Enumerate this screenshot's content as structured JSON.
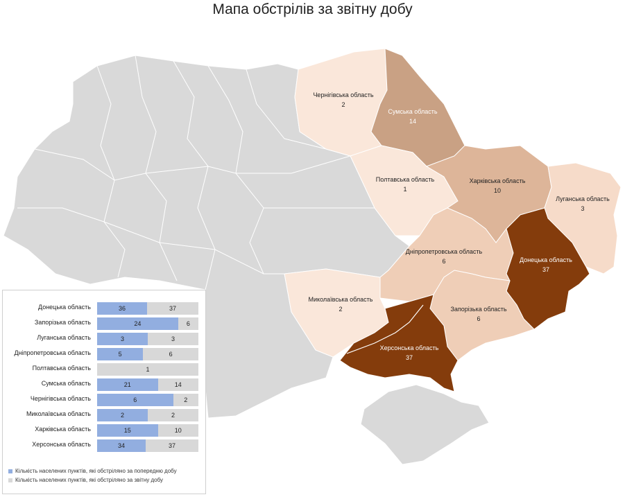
{
  "title": "Мапа обстрілів за звітну добу",
  "colors": {
    "other": "#d9d9d9",
    "c1": "#fae7da",
    "c2": "#f6dbc9",
    "c3": "#efceb7",
    "c4": "#ddb599",
    "c5": "#c9a184",
    "c6": "#843c0c",
    "prev": "#92aee0",
    "cur": "#d8d8d8"
  },
  "regions": [
    {
      "name": "Чернігівська область",
      "value": "2"
    },
    {
      "name": "Сумська область",
      "value": "14"
    },
    {
      "name": "Полтавська область",
      "value": "1"
    },
    {
      "name": "Харківська область",
      "value": "10"
    },
    {
      "name": "Луганська область",
      "value": "3"
    },
    {
      "name": "Дніпропетровська область",
      "value": "6"
    },
    {
      "name": "Донецька область",
      "value": "37"
    },
    {
      "name": "Миколаївська область",
      "value": "2"
    },
    {
      "name": "Запорізька область",
      "value": "6"
    },
    {
      "name": "Херсонська область",
      "value": "37"
    }
  ],
  "chart_data": {
    "type": "bar",
    "stacked": true,
    "orientation": "horizontal",
    "categories": [
      "Донецька область",
      "Запорізька область",
      "Луганська область",
      "Дніпропетровська область",
      "Полтавська область",
      "Сумська область",
      "Чернігівська  область",
      "Миколаївська область",
      "Харківська область",
      "Херсонська область"
    ],
    "series": [
      {
        "name": "Кількість населених пунктів, які обстріляно за попередню добу",
        "values": [
          36,
          24,
          3,
          5,
          null,
          21,
          6,
          2,
          15,
          34
        ]
      },
      {
        "name": "Кількість населених пунктів, які обстріляно за звітну добу",
        "values": [
          37,
          6,
          3,
          6,
          1,
          14,
          2,
          2,
          10,
          37
        ]
      }
    ],
    "legend": "bottom"
  }
}
